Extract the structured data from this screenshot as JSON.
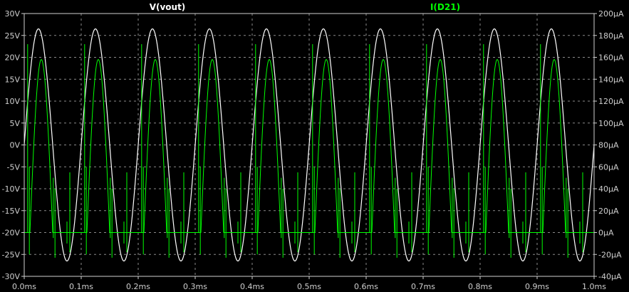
{
  "chart_data": {
    "type": "line",
    "background": "#000000",
    "grid": "dashed",
    "x": {
      "ticks": [
        0,
        0.1,
        0.2,
        0.3,
        0.4,
        0.5,
        0.6,
        0.7,
        0.8,
        0.9,
        1.0
      ],
      "tick_labels": [
        "0.0ms",
        "0.1ms",
        "0.2ms",
        "0.3ms",
        "0.4ms",
        "0.5ms",
        "0.6ms",
        "0.7ms",
        "0.8ms",
        "0.9ms",
        "1.0ms"
      ],
      "range": [
        0,
        1.0
      ]
    },
    "y_left": {
      "range": [
        -30,
        30
      ],
      "ticks": [
        30,
        25,
        20,
        15,
        10,
        5,
        0,
        -5,
        -10,
        -15,
        -20,
        -25,
        -30
      ],
      "tick_labels": [
        "30V",
        "25V",
        "20V",
        "15V",
        "10V",
        "5V",
        "0V",
        "-5V",
        "-10V",
        "-15V",
        "-20V",
        "-25V",
        "-30V"
      ]
    },
    "y_right": {
      "range": [
        -40,
        200
      ],
      "ticks": [
        200,
        180,
        160,
        140,
        120,
        100,
        80,
        60,
        40,
        20,
        0,
        -20,
        -40
      ],
      "tick_labels": [
        "200µA",
        "180µA",
        "160µA",
        "140µA",
        "120µA",
        "100µA",
        "80µA",
        "60µA",
        "40µA",
        "20µA",
        "0µA",
        "-20µA",
        "-40µA"
      ]
    },
    "series": [
      {
        "name": "V(vout)",
        "axis": "left",
        "color": "#ffffff",
        "waveform": "sine",
        "period_ms": 0.1,
        "amplitude": 26.5,
        "peak_times_ms": [
          0.025,
          0.125,
          0.225,
          0.325,
          0.425,
          0.525,
          0.625,
          0.725,
          0.825,
          0.925
        ]
      },
      {
        "name": "I(D21)",
        "axis": "right",
        "color": "#00ff00",
        "waveform": "rectified-pulse",
        "period_ms": 0.1,
        "peak": 158,
        "peak_times_ms": [
          0.03,
          0.13,
          0.23,
          0.33,
          0.43,
          0.53,
          0.63,
          0.73,
          0.83,
          0.93
        ],
        "baseline": 0,
        "spike_max": 172,
        "spike_min": -23
      }
    ]
  }
}
